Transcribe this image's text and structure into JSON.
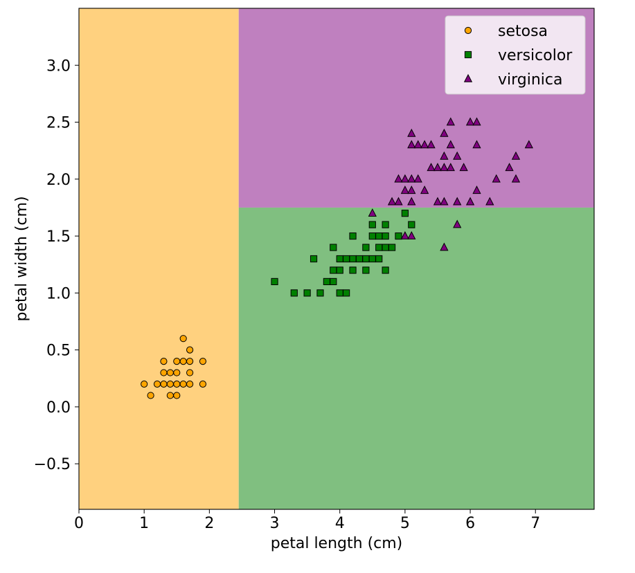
{
  "chart_data": {
    "type": "scatter",
    "title": "",
    "xlabel": "petal length (cm)",
    "ylabel": "petal width (cm)",
    "xlim": [
      0,
      7.9
    ],
    "ylim": [
      -0.9,
      3.5
    ],
    "grid": false,
    "legend_position": "top-right",
    "x_ticks": [
      0,
      1,
      2,
      3,
      4,
      5,
      6,
      7
    ],
    "x_tick_labels": [
      "0",
      "1",
      "2",
      "3",
      "4",
      "5",
      "6",
      "7"
    ],
    "y_ticks": [
      -0.5,
      0.0,
      0.5,
      1.0,
      1.5,
      2.0,
      2.5,
      3.0
    ],
    "y_tick_labels": [
      "−0.5",
      "0.0",
      "0.5",
      "1.0",
      "1.5",
      "2.0",
      "2.5",
      "3.0"
    ],
    "decision_regions": [
      {
        "class": "setosa",
        "x_range": [
          0,
          2.45
        ],
        "y_range": [
          -0.9,
          3.5
        ],
        "color": "#ffd17f"
      },
      {
        "class": "versicolor",
        "x_range": [
          2.45,
          7.9
        ],
        "y_range": [
          -0.9,
          1.75
        ],
        "color": "#80bf80"
      },
      {
        "class": "virginica",
        "x_range": [
          2.45,
          7.9
        ],
        "y_range": [
          1.75,
          3.5
        ],
        "color": "#bf80bf"
      }
    ],
    "series": [
      {
        "name": "setosa",
        "marker": "circle",
        "color": "#ffa500",
        "points": [
          [
            1.1,
            0.1
          ],
          [
            1.4,
            0.1
          ],
          [
            1.5,
            0.1
          ],
          [
            1.0,
            0.2
          ],
          [
            1.2,
            0.2
          ],
          [
            1.3,
            0.2
          ],
          [
            1.4,
            0.2
          ],
          [
            1.5,
            0.2
          ],
          [
            1.6,
            0.2
          ],
          [
            1.7,
            0.2
          ],
          [
            1.9,
            0.2
          ],
          [
            1.3,
            0.3
          ],
          [
            1.4,
            0.3
          ],
          [
            1.5,
            0.3
          ],
          [
            1.7,
            0.3
          ],
          [
            1.3,
            0.4
          ],
          [
            1.5,
            0.4
          ],
          [
            1.6,
            0.4
          ],
          [
            1.7,
            0.4
          ],
          [
            1.9,
            0.4
          ],
          [
            1.7,
            0.5
          ],
          [
            1.6,
            0.6
          ]
        ]
      },
      {
        "name": "versicolor",
        "marker": "square",
        "color": "#008000",
        "points": [
          [
            3.3,
            1.0
          ],
          [
            3.5,
            1.0
          ],
          [
            3.7,
            1.0
          ],
          [
            4.0,
            1.0
          ],
          [
            4.1,
            1.0
          ],
          [
            3.0,
            1.1
          ],
          [
            3.8,
            1.1
          ],
          [
            3.9,
            1.1
          ],
          [
            3.9,
            1.2
          ],
          [
            4.0,
            1.2
          ],
          [
            4.2,
            1.2
          ],
          [
            4.4,
            1.2
          ],
          [
            4.7,
            1.2
          ],
          [
            3.6,
            1.3
          ],
          [
            4.0,
            1.3
          ],
          [
            4.1,
            1.3
          ],
          [
            4.2,
            1.3
          ],
          [
            4.3,
            1.3
          ],
          [
            4.4,
            1.3
          ],
          [
            4.5,
            1.3
          ],
          [
            4.6,
            1.3
          ],
          [
            3.9,
            1.4
          ],
          [
            4.4,
            1.4
          ],
          [
            4.6,
            1.4
          ],
          [
            4.7,
            1.4
          ],
          [
            4.8,
            1.4
          ],
          [
            4.2,
            1.5
          ],
          [
            4.5,
            1.5
          ],
          [
            4.6,
            1.5
          ],
          [
            4.7,
            1.5
          ],
          [
            4.9,
            1.5
          ],
          [
            4.5,
            1.6
          ],
          [
            4.7,
            1.6
          ],
          [
            5.1,
            1.6
          ],
          [
            5.0,
            1.7
          ]
        ]
      },
      {
        "name": "virginica",
        "marker": "triangle",
        "color": "#800080",
        "points": [
          [
            5.6,
            1.4
          ],
          [
            5.0,
            1.5
          ],
          [
            5.1,
            1.5
          ],
          [
            5.8,
            1.6
          ],
          [
            4.5,
            1.7
          ],
          [
            4.8,
            1.8
          ],
          [
            4.9,
            1.8
          ],
          [
            5.1,
            1.8
          ],
          [
            5.5,
            1.8
          ],
          [
            5.6,
            1.8
          ],
          [
            5.8,
            1.8
          ],
          [
            6.0,
            1.8
          ],
          [
            6.3,
            1.8
          ],
          [
            5.0,
            1.9
          ],
          [
            5.1,
            1.9
          ],
          [
            5.3,
            1.9
          ],
          [
            6.1,
            1.9
          ],
          [
            4.9,
            2.0
          ],
          [
            5.0,
            2.0
          ],
          [
            5.1,
            2.0
          ],
          [
            5.2,
            2.0
          ],
          [
            6.4,
            2.0
          ],
          [
            6.7,
            2.0
          ],
          [
            5.4,
            2.1
          ],
          [
            5.5,
            2.1
          ],
          [
            5.6,
            2.1
          ],
          [
            5.7,
            2.1
          ],
          [
            5.9,
            2.1
          ],
          [
            6.6,
            2.1
          ],
          [
            5.6,
            2.2
          ],
          [
            5.8,
            2.2
          ],
          [
            6.7,
            2.2
          ],
          [
            5.1,
            2.3
          ],
          [
            5.2,
            2.3
          ],
          [
            5.3,
            2.3
          ],
          [
            5.4,
            2.3
          ],
          [
            5.7,
            2.3
          ],
          [
            6.1,
            2.3
          ],
          [
            6.9,
            2.3
          ],
          [
            5.1,
            2.4
          ],
          [
            5.6,
            2.4
          ],
          [
            5.7,
            2.5
          ],
          [
            6.0,
            2.5
          ],
          [
            6.1,
            2.5
          ]
        ]
      }
    ]
  }
}
